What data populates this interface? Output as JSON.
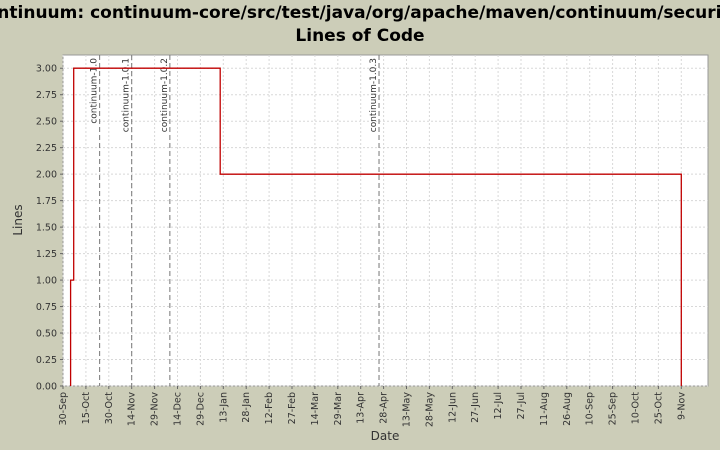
{
  "chart_data": {
    "type": "line",
    "line_style": "step",
    "title_lines": [
      "Continuum: continuum-core/src/test/java/org/apache/maven/continuum/security/",
      "Lines of Code"
    ],
    "xlabel": "Date",
    "ylabel": "Lines",
    "ylim": [
      0,
      3.125
    ],
    "y_ticks": [
      "0.00",
      "0.25",
      "0.50",
      "0.75",
      "1.00",
      "1.25",
      "1.50",
      "1.75",
      "2.00",
      "2.25",
      "2.50",
      "2.75",
      "3.00"
    ],
    "x_ticks": [
      "30-Sep",
      "15-Oct",
      "30-Oct",
      "14-Nov",
      "29-Nov",
      "14-Dec",
      "29-Dec",
      "13-Jan",
      "28-Jan",
      "12-Feb",
      "27-Feb",
      "14-Mar",
      "29-Mar",
      "13-Apr",
      "28-Apr",
      "13-May",
      "28-May",
      "12-Jun",
      "27-Jun",
      "12-Jul",
      "27-Jul",
      "11-Aug",
      "26-Aug",
      "10-Sep",
      "25-Sep",
      "10-Oct",
      "25-Oct",
      "9-Nov"
    ],
    "grid": true,
    "colors": {
      "background": "#cccdb8",
      "plot_background": "#ffffff",
      "line": "#c00000",
      "grid": "#d8d8d8",
      "marker": "#777777"
    },
    "series": [
      {
        "points": [
          {
            "x": "05-Oct",
            "y": 0
          },
          {
            "x": "05-Oct",
            "y": 1
          },
          {
            "x": "07-Oct",
            "y": 1
          },
          {
            "x": "07-Oct",
            "y": 3
          },
          {
            "x": "11-Jan",
            "y": 3
          },
          {
            "x": "11-Jan",
            "y": 2
          },
          {
            "x": "09-Nov",
            "y": 2
          },
          {
            "x": "09-Nov",
            "y": 0
          }
        ]
      }
    ],
    "markers": [
      {
        "label": "continuum-1.0",
        "x": "24-Oct"
      },
      {
        "label": "continuum-1.0.1",
        "x": "14-Nov"
      },
      {
        "label": "continuum-1.0.2",
        "x": "09-Dec"
      },
      {
        "label": "continuum-1.0.3",
        "x": "25-Apr"
      }
    ]
  }
}
